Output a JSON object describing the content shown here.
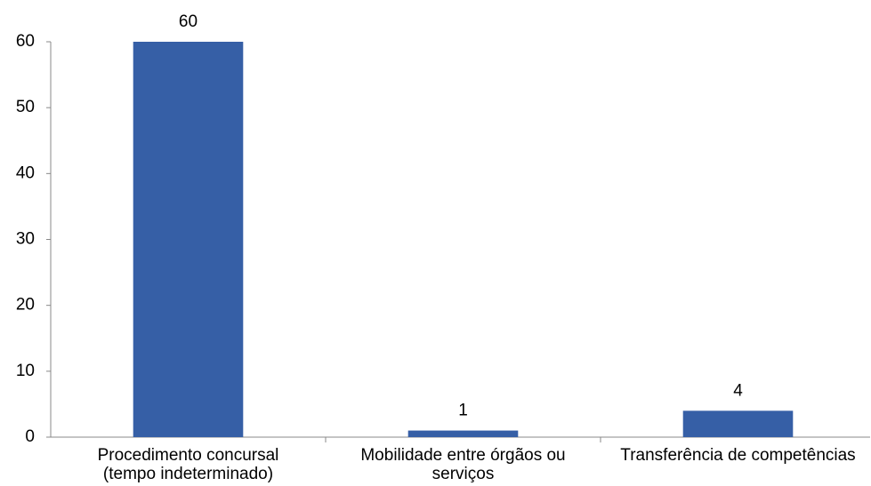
{
  "chart_data": {
    "type": "bar",
    "categories": [
      "Procedimento concursal (tempo indeterminado)",
      "Mobilidade entre órgãos ou serviços",
      "Transferência de competências"
    ],
    "values": [
      60,
      1,
      4
    ],
    "color": "#365fa6",
    "ylim": [
      0,
      60
    ],
    "yticks": [
      0,
      10,
      20,
      30,
      40,
      50,
      60
    ],
    "grid": false
  }
}
